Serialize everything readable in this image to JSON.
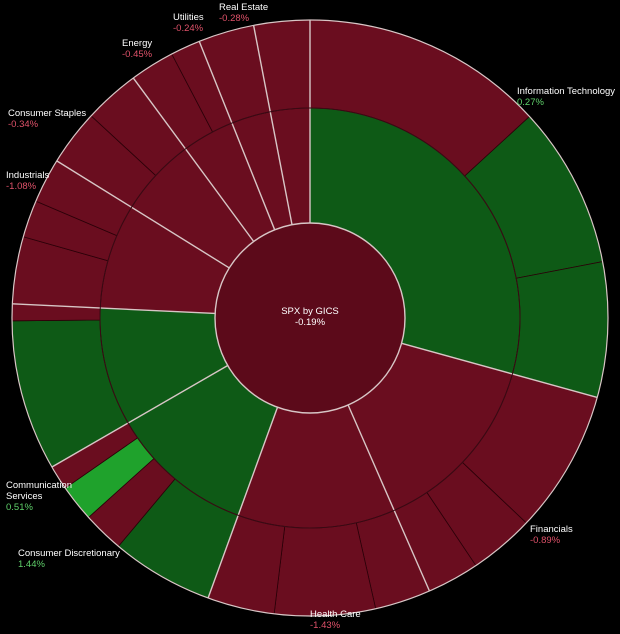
{
  "chart_data": {
    "type": "sunburst",
    "title": "SPX by GICS",
    "total_change": "-0.19%",
    "colors": {
      "background": "#000000",
      "separator": "#d8c6c6",
      "up": "#0e5a16",
      "up_strong": "#1fa22c",
      "down": "#6a0d1f",
      "down_dark": "#5c0a1a"
    },
    "sectors": [
      {
        "name": "Information Technology",
        "change": "0.27%",
        "weight": 0.29,
        "direction": "up"
      },
      {
        "name": "Financials",
        "change": "-0.89%",
        "weight": 0.14,
        "direction": "down"
      },
      {
        "name": "Health Care",
        "change": "-1.43%",
        "weight": 0.12,
        "direction": "down"
      },
      {
        "name": "Consumer Discretionary",
        "change": "1.44%",
        "weight": 0.11,
        "direction": "up"
      },
      {
        "name": "Communication Services",
        "change": "0.51%",
        "weight": 0.09,
        "direction": "up"
      },
      {
        "name": "Industrials",
        "change": "-1.08%",
        "weight": 0.08,
        "direction": "down"
      },
      {
        "name": "Consumer Staples",
        "change": "-0.34%",
        "weight": 0.06,
        "direction": "down"
      },
      {
        "name": "Energy",
        "change": "-0.45%",
        "weight": 0.04,
        "direction": "down"
      },
      {
        "name": "Utilities",
        "change": "-0.24%",
        "weight": 0.03,
        "direction": "down"
      },
      {
        "name": "Real Estate",
        "change": "-0.28%",
        "weight": 0.03,
        "direction": "down"
      }
    ]
  }
}
